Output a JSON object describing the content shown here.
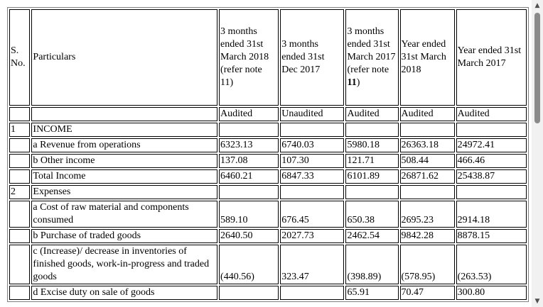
{
  "header": {
    "sno": "S. No.",
    "particulars": "Particulars",
    "col1": "3 months ended 31st March 2018 (refer note 11)",
    "col2": "3 months ended 31st Dec 2017",
    "col3_a": "3 months ended 31st March 2017 (refer note ",
    "col3_b": "11",
    "col3_c": ")",
    "col4": "Year ended 31st March 2018",
    "col5": "Year ended 31st March 2017"
  },
  "status": [
    "Audited",
    "Unaudited",
    "Audited",
    "Audited",
    "Audited"
  ],
  "rows": [
    {
      "sno": "1",
      "label": "INCOME",
      "v": [
        "",
        "",
        "",
        "",
        ""
      ]
    },
    {
      "sno": "",
      "label": "a Revenue from operations",
      "v": [
        "6323.13",
        "6740.03",
        "5980.18",
        "26363.18",
        "24972.41"
      ]
    },
    {
      "sno": "",
      "label": "b Other income",
      "v": [
        "137.08",
        "107.30",
        "121.71",
        "508.44",
        "466.46"
      ]
    },
    {
      "sno": "",
      "label": "Total Income",
      "v": [
        "6460.21",
        "6847.33",
        "6101.89",
        "26871.62",
        "25438.87"
      ]
    },
    {
      "sno": "2",
      "label": "Expenses",
      "v": [
        "",
        "",
        "",
        "",
        ""
      ]
    },
    {
      "sno": "",
      "label": "a Cost of raw material and components consumed",
      "v": [
        "589.10",
        "676.45",
        "650.38",
        "2695.23",
        "2914.18"
      ]
    },
    {
      "sno": "",
      "label": "b Purchase of traded goods",
      "v": [
        "2640.50",
        "2027.73",
        "2462.54",
        "9842.28",
        "8878.15"
      ]
    },
    {
      "sno": "",
      "label": "c (Increase)/ decrease in inventories of finished goods, work-in-progress and traded goods",
      "v": [
        "(440.56)",
        "323.47",
        "(398.89)",
        "(578.95)",
        "(263.53)"
      ]
    },
    {
      "sno": "",
      "label": "d Excise duty on sale of goods",
      "v": [
        "",
        "",
        "65.91",
        "70.47",
        "300.80"
      ]
    }
  ]
}
